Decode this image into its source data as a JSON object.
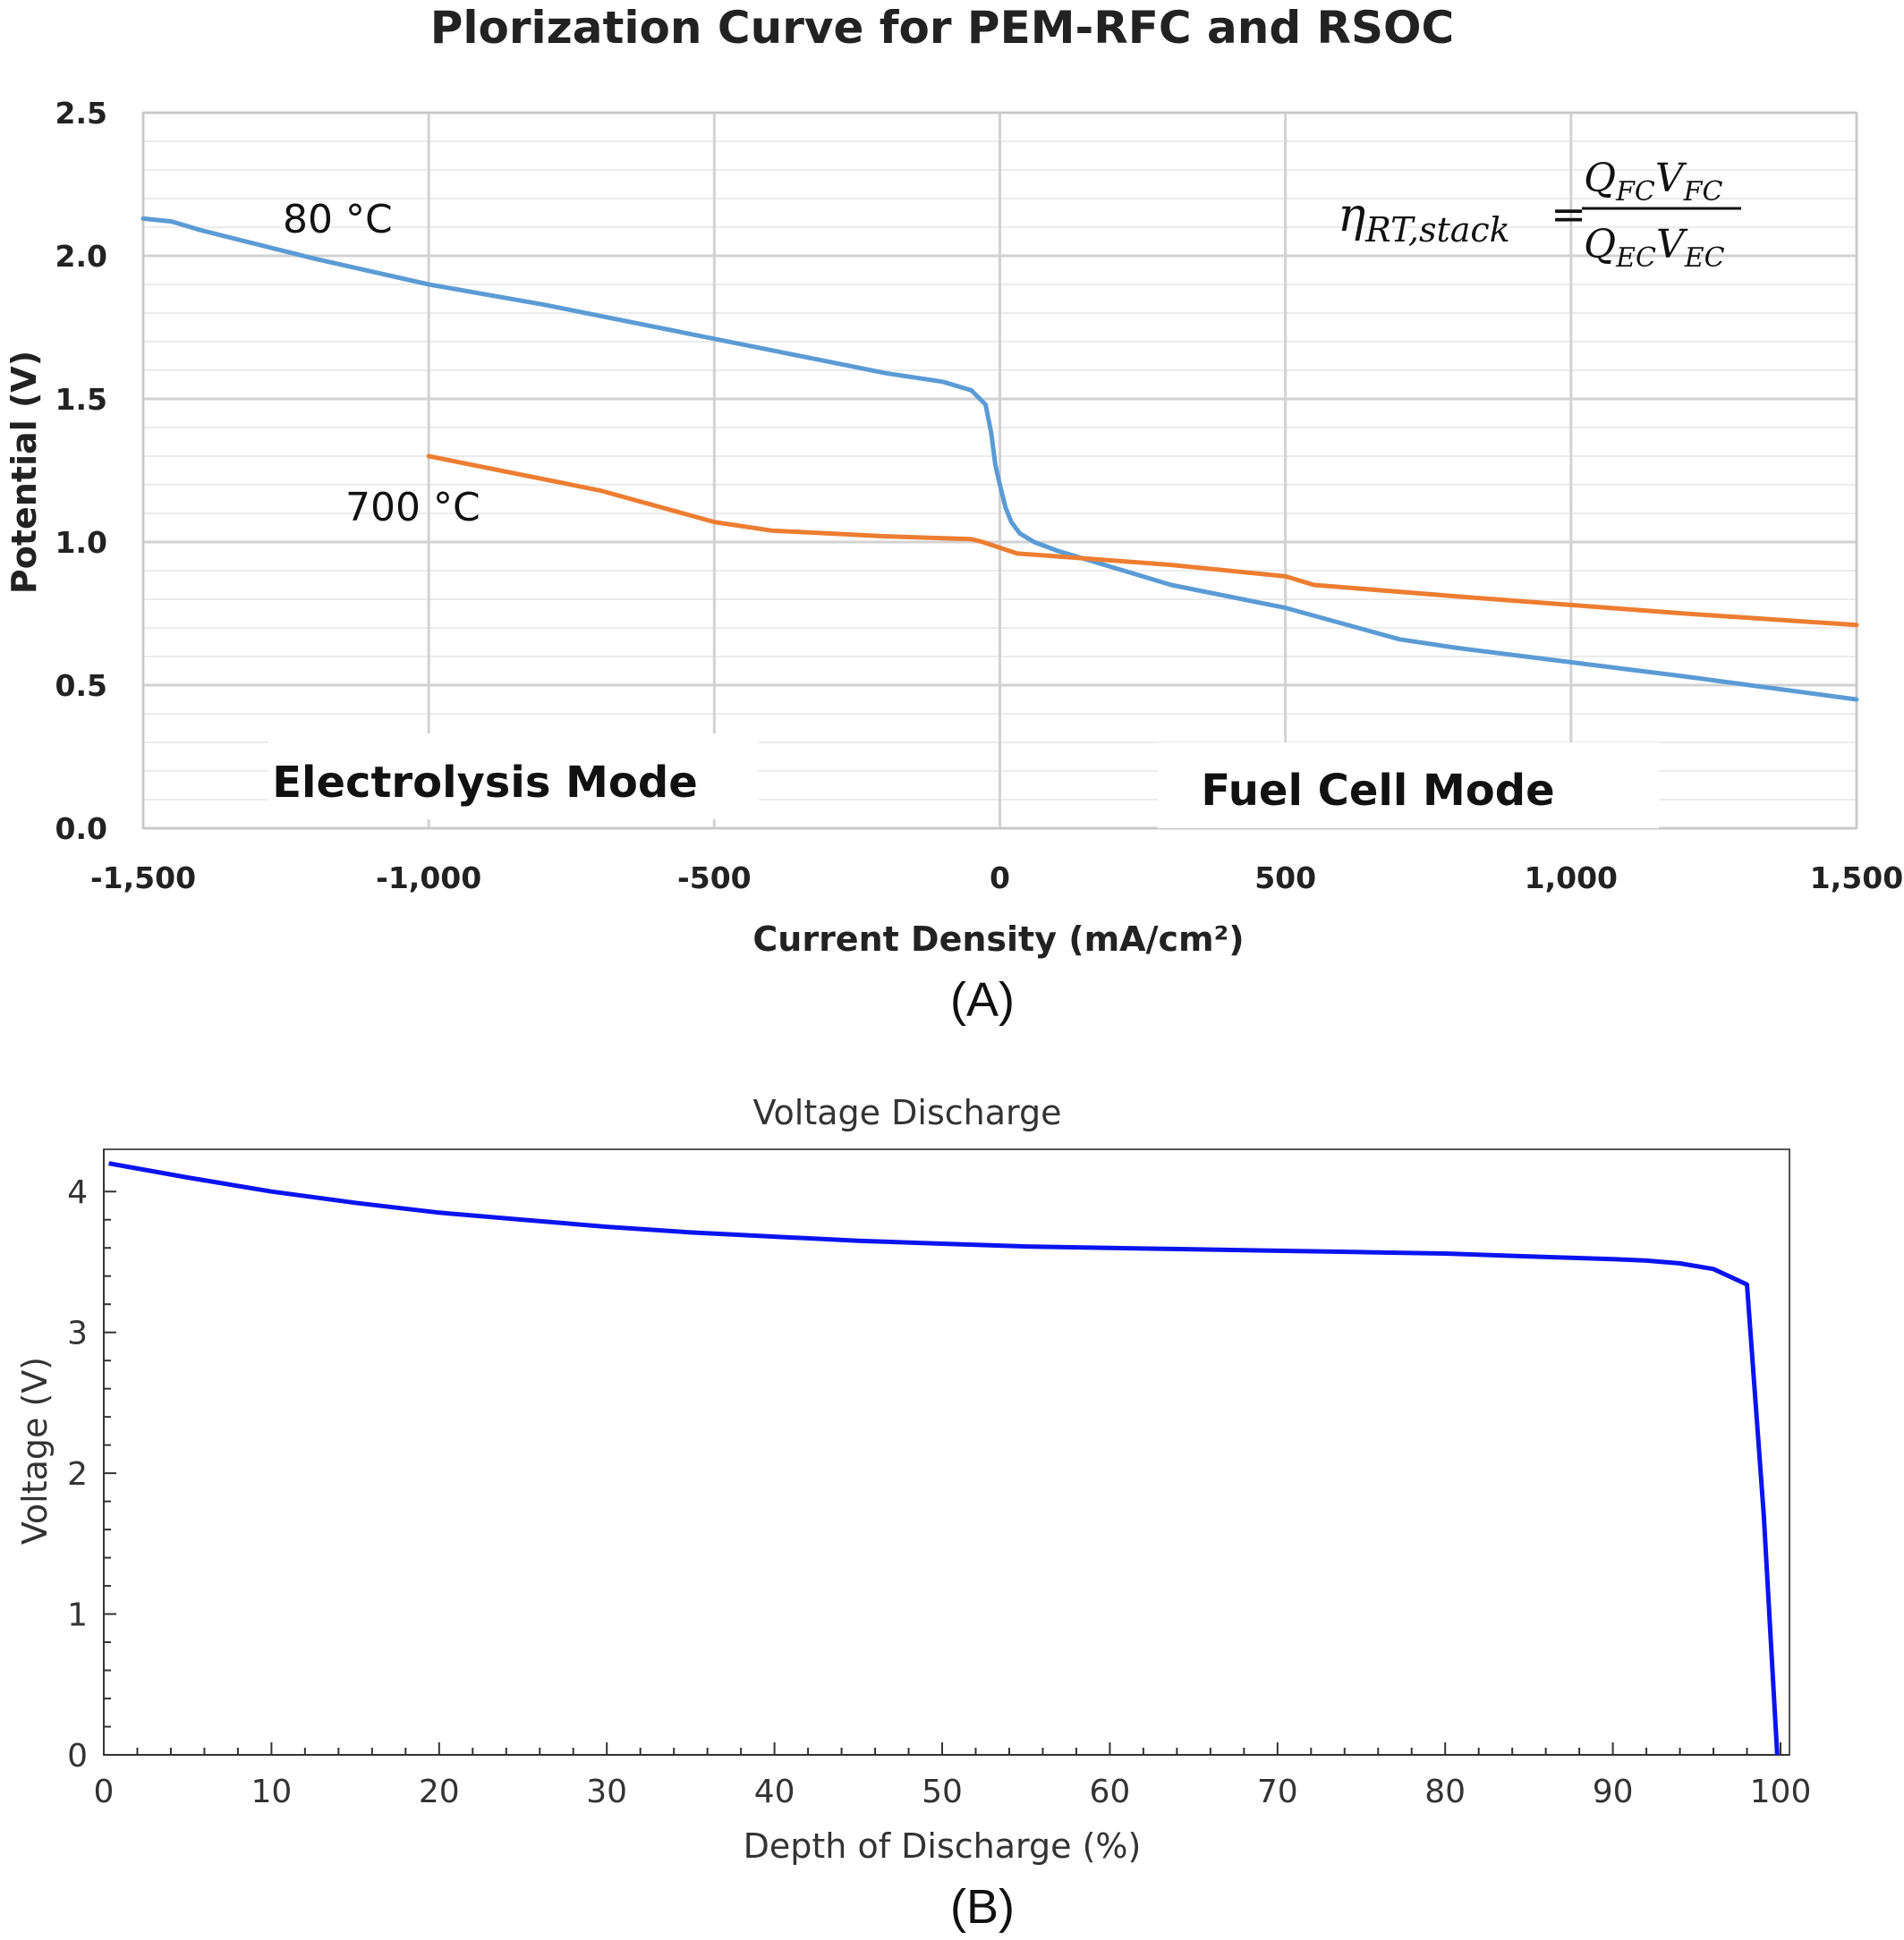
{
  "chart_data": [
    {
      "type": "line",
      "title": "Plorization Curve for PEM-RFC and RSOC",
      "xlabel": "Current Density (mA/cm²)",
      "ylabel": "Potential (V)",
      "xlim": [
        -1500,
        1500
      ],
      "ylim": [
        0,
        2.5
      ],
      "x_ticks": [
        "-1,500",
        "-1,000",
        "-500",
        "0",
        "500",
        "1,000",
        "1,500"
      ],
      "y_ticks": [
        "0.0",
        "0.5",
        "1.0",
        "1.5",
        "2.0",
        "2.5"
      ],
      "grid": true,
      "series": [
        {
          "name": "80 °C",
          "color": "#5b9bd5",
          "points": [
            [
              -1500,
              2.13
            ],
            [
              -1450,
              2.12
            ],
            [
              -1400,
              2.09
            ],
            [
              -1200,
              1.99
            ],
            [
              -1000,
              1.9
            ],
            [
              -800,
              1.83
            ],
            [
              -500,
              1.71
            ],
            [
              -400,
              1.67
            ],
            [
              -200,
              1.59
            ],
            [
              -100,
              1.56
            ],
            [
              -50,
              1.53
            ],
            [
              -25,
              1.48
            ],
            [
              -15,
              1.38
            ],
            [
              -8,
              1.27
            ],
            [
              0,
              1.2
            ],
            [
              10,
              1.12
            ],
            [
              20,
              1.07
            ],
            [
              35,
              1.03
            ],
            [
              60,
              1.0
            ],
            [
              100,
              0.97
            ],
            [
              300,
              0.85
            ],
            [
              500,
              0.77
            ],
            [
              700,
              0.66
            ],
            [
              800,
              0.63
            ],
            [
              1000,
              0.58
            ],
            [
              1200,
              0.53
            ],
            [
              1500,
              0.45
            ]
          ]
        },
        {
          "name": "700 °C",
          "color": "#ed7d31",
          "points": [
            [
              -1000,
              1.3
            ],
            [
              -700,
              1.18
            ],
            [
              -500,
              1.07
            ],
            [
              -400,
              1.04
            ],
            [
              -200,
              1.02
            ],
            [
              -50,
              1.01
            ],
            [
              -30,
              1.0
            ],
            [
              0,
              0.98
            ],
            [
              30,
              0.96
            ],
            [
              100,
              0.95
            ],
            [
              300,
              0.92
            ],
            [
              500,
              0.88
            ],
            [
              550,
              0.85
            ],
            [
              800,
              0.81
            ],
            [
              1000,
              0.78
            ],
            [
              1200,
              0.75
            ],
            [
              1500,
              0.71
            ]
          ]
        }
      ],
      "annotations": {
        "electrolysis_mode": "Electrolysis Mode",
        "fuel_cell_mode": "Fuel Cell Mode"
      },
      "equation": {
        "lhs": "η",
        "lhs_sub": "RT,stack",
        "eq": "=",
        "num_q": "Q",
        "num_q_sub": "FC",
        "num_v": "V",
        "num_v_sub": "FC",
        "den_q": "Q",
        "den_q_sub": "EC",
        "den_v": "V",
        "den_v_sub": "EC"
      }
    },
    {
      "type": "line",
      "title": "Voltage Discharge",
      "xlabel": "Depth of Discharge (%)",
      "ylabel": "Voltage (V)",
      "xlim": [
        0,
        100
      ],
      "ylim": [
        0,
        4.3
      ],
      "x_ticks": [
        "0",
        "10",
        "20",
        "30",
        "40",
        "50",
        "60",
        "70",
        "80",
        "90",
        "100"
      ],
      "y_ticks": [
        "0",
        "1",
        "2",
        "3",
        "4"
      ],
      "grid": false,
      "series": [
        {
          "color": "#0a14f0",
          "points": [
            [
              0.3,
              4.2
            ],
            [
              5,
              4.1
            ],
            [
              10,
              4.0
            ],
            [
              15,
              3.92
            ],
            [
              20,
              3.85
            ],
            [
              25,
              3.8
            ],
            [
              30,
              3.75
            ],
            [
              35,
              3.71
            ],
            [
              40,
              3.68
            ],
            [
              45,
              3.65
            ],
            [
              50,
              3.63
            ],
            [
              55,
              3.61
            ],
            [
              60,
              3.6
            ],
            [
              65,
              3.59
            ],
            [
              70,
              3.58
            ],
            [
              75,
              3.57
            ],
            [
              80,
              3.56
            ],
            [
              85,
              3.54
            ],
            [
              90,
              3.52
            ],
            [
              92,
              3.51
            ],
            [
              94,
              3.49
            ],
            [
              96,
              3.45
            ],
            [
              98,
              3.34
            ],
            [
              99,
              1.7
            ],
            [
              99.8,
              0
            ]
          ]
        }
      ]
    }
  ],
  "panel_labels": [
    "(A)",
    "(B)"
  ]
}
